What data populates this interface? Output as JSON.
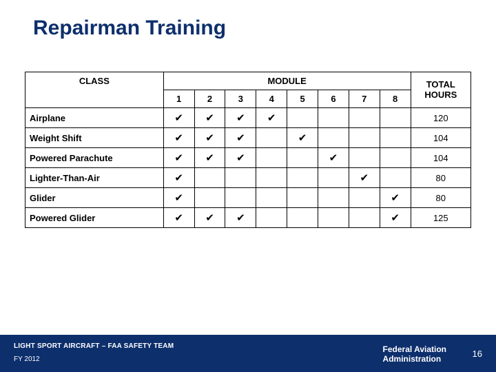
{
  "title": "Repairman Training",
  "table": {
    "class_header": "CLASS",
    "module_header": "MODULE",
    "total_header_l1": "TOTAL",
    "total_header_l2": "HOURS",
    "module_numbers": [
      "1",
      "2",
      "3",
      "4",
      "5",
      "6",
      "7",
      "8"
    ],
    "rows": [
      {
        "label": "Airplane",
        "checks": [
          "✔",
          "✔",
          "✔",
          "✔",
          "",
          "",
          "",
          ""
        ],
        "total": "120"
      },
      {
        "label": "Weight Shift",
        "checks": [
          "✔",
          "✔",
          "✔",
          "",
          "✔",
          "",
          "",
          ""
        ],
        "total": "104"
      },
      {
        "label": "Powered Parachute",
        "checks": [
          "✔",
          "✔",
          "✔",
          "",
          "",
          "✔",
          "",
          ""
        ],
        "total": "104"
      },
      {
        "label": "Lighter-Than-Air",
        "checks": [
          "✔",
          "",
          "",
          "",
          "",
          "",
          "✔",
          ""
        ],
        "total": "80"
      },
      {
        "label": "Glider",
        "checks": [
          "✔",
          "",
          "",
          "",
          "",
          "",
          "",
          "✔"
        ],
        "total": "80"
      },
      {
        "label": "Powered Glider",
        "checks": [
          "✔",
          "✔",
          "✔",
          "",
          "",
          "",
          "",
          "✔"
        ],
        "total": "125"
      }
    ]
  },
  "footer": {
    "left_top": "LIGHT SPORT AIRCRAFT – FAA SAFETY TEAM",
    "left_bottom": "FY 2012",
    "right_l1": "Federal Aviation",
    "right_l2": "Administration",
    "page": "16"
  }
}
